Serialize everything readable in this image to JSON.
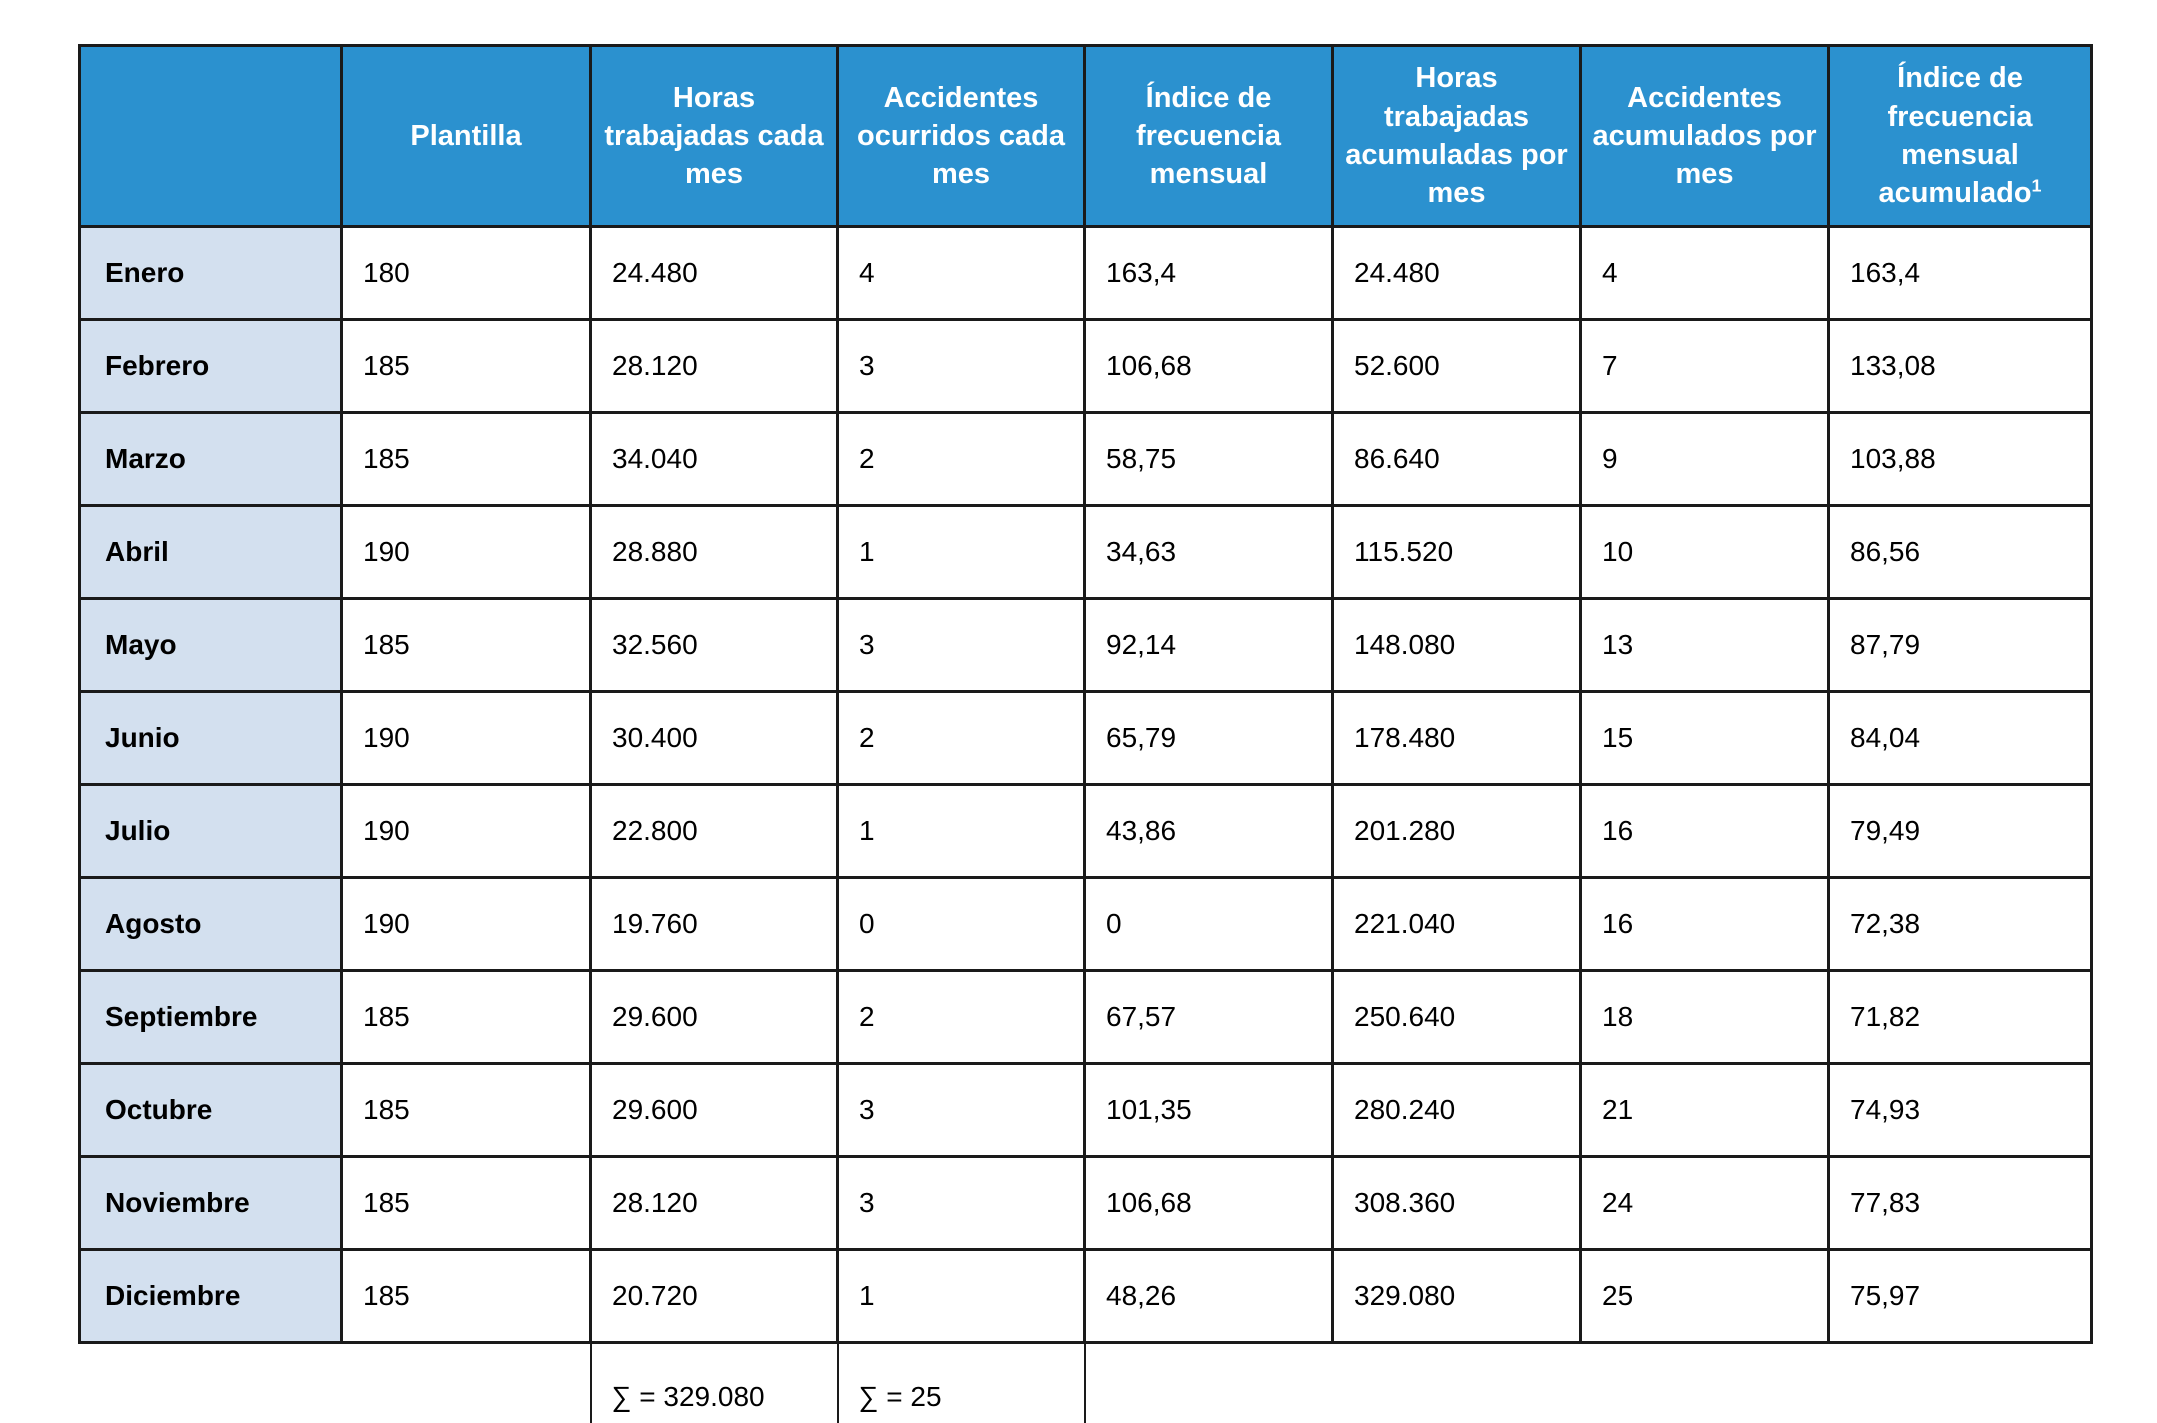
{
  "colors": {
    "header_bg": "#2B91CF",
    "header_text": "#FFFFFF",
    "month_col_bg": "#D3E0EF",
    "border": "#1A1A1A",
    "body_text": "#000000"
  },
  "table": {
    "headers": [
      "",
      "Plantilla",
      "Horas trabajadas cada mes",
      "Accidentes ocurridos cada mes",
      "Índice de frecuencia mensual",
      "Horas trabajadas acumuladas por mes",
      "Accidentes acumulados por mes",
      "Índice de frecuencia mensual acumulado"
    ],
    "header_superscript": "1",
    "rows": [
      {
        "month": "Enero",
        "plantilla": "180",
        "horas_mes": "24.480",
        "accidentes_mes": "4",
        "indice_mensual": "163,4",
        "horas_acumuladas": "24.480",
        "accidentes_acumulados": "4",
        "indice_acumulado": "163,4"
      },
      {
        "month": "Febrero",
        "plantilla": "185",
        "horas_mes": "28.120",
        "accidentes_mes": "3",
        "indice_mensual": "106,68",
        "horas_acumuladas": "52.600",
        "accidentes_acumulados": "7",
        "indice_acumulado": "133,08"
      },
      {
        "month": "Marzo",
        "plantilla": "185",
        "horas_mes": "34.040",
        "accidentes_mes": "2",
        "indice_mensual": "58,75",
        "horas_acumuladas": "86.640",
        "accidentes_acumulados": "9",
        "indice_acumulado": "103,88"
      },
      {
        "month": "Abril",
        "plantilla": "190",
        "horas_mes": "28.880",
        "accidentes_mes": "1",
        "indice_mensual": "34,63",
        "horas_acumuladas": "115.520",
        "accidentes_acumulados": "10",
        "indice_acumulado": "86,56"
      },
      {
        "month": "Mayo",
        "plantilla": "185",
        "horas_mes": "32.560",
        "accidentes_mes": "3",
        "indice_mensual": "92,14",
        "horas_acumuladas": "148.080",
        "accidentes_acumulados": "13",
        "indice_acumulado": "87,79"
      },
      {
        "month": "Junio",
        "plantilla": "190",
        "horas_mes": "30.400",
        "accidentes_mes": "2",
        "indice_mensual": "65,79",
        "horas_acumuladas": "178.480",
        "accidentes_acumulados": "15",
        "indice_acumulado": "84,04"
      },
      {
        "month": "Julio",
        "plantilla": "190",
        "horas_mes": "22.800",
        "accidentes_mes": "1",
        "indice_mensual": "43,86",
        "horas_acumuladas": "201.280",
        "accidentes_acumulados": "16",
        "indice_acumulado": "79,49"
      },
      {
        "month": "Agosto",
        "plantilla": "190",
        "horas_mes": "19.760",
        "accidentes_mes": "0",
        "indice_mensual": "0",
        "horas_acumuladas": "221.040",
        "accidentes_acumulados": "16",
        "indice_acumulado": "72,38"
      },
      {
        "month": "Septiembre",
        "plantilla": "185",
        "horas_mes": "29.600",
        "accidentes_mes": "2",
        "indice_mensual": "67,57",
        "horas_acumuladas": "250.640",
        "accidentes_acumulados": "18",
        "indice_acumulado": "71,82"
      },
      {
        "month": "Octubre",
        "plantilla": "185",
        "horas_mes": "29.600",
        "accidentes_mes": "3",
        "indice_mensual": "101,35",
        "horas_acumuladas": "280.240",
        "accidentes_acumulados": "21",
        "indice_acumulado": "74,93"
      },
      {
        "month": "Noviembre",
        "plantilla": "185",
        "horas_mes": "28.120",
        "accidentes_mes": "3",
        "indice_mensual": "106,68",
        "horas_acumuladas": "308.360",
        "accidentes_acumulados": "24",
        "indice_acumulado": "77,83"
      },
      {
        "month": "Diciembre",
        "plantilla": "185",
        "horas_mes": "20.720",
        "accidentes_mes": "1",
        "indice_mensual": "48,26",
        "horas_acumuladas": "329.080",
        "accidentes_acumulados": "25",
        "indice_acumulado": "75,97"
      }
    ],
    "footer": {
      "horas_sum": "∑ = 329.080",
      "accidentes_sum": "∑ = 25"
    }
  }
}
